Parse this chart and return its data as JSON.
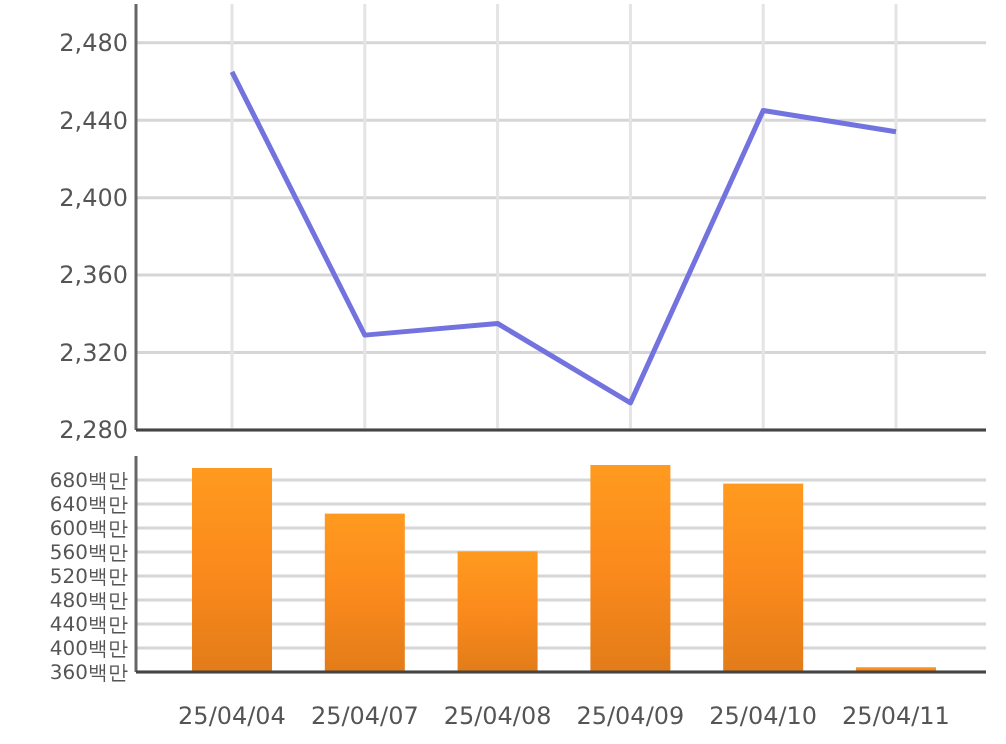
{
  "chart_data": [
    {
      "type": "line",
      "categories": [
        null,
        null,
        null,
        null,
        null,
        null
      ],
      "series": [
        {
          "color": "#7373e0",
          "values": [
            2465,
            2329,
            2335,
            2294,
            2445,
            2434
          ]
        }
      ],
      "ylim": [
        2280,
        2500
      ],
      "yticks": [
        {
          "value": 2280,
          "label": "2,280"
        },
        {
          "value": 2320,
          "label": "2,320"
        },
        {
          "value": 2360,
          "label": "2,360"
        },
        {
          "value": 2400,
          "label": "2,400"
        },
        {
          "value": 2440,
          "label": "2,440"
        },
        {
          "value": 2480,
          "label": "2,480"
        }
      ],
      "grid": true,
      "tick_labels": "y",
      "marker": "none"
    },
    {
      "type": "bar",
      "categories": [
        "25/04/04",
        "25/04/07",
        "25/04/08",
        "25/04/09",
        "25/04/10",
        "25/04/11"
      ],
      "series": [
        {
          "color": "#fb8a1c",
          "values": [
            700,
            624,
            561,
            705,
            674,
            368
          ]
        }
      ],
      "ylim": [
        360,
        720
      ],
      "yticks": [
        {
          "value": 360,
          "label": "360백만"
        },
        {
          "value": 400,
          "label": "400백만"
        },
        {
          "value": 440,
          "label": "440백만"
        },
        {
          "value": 480,
          "label": "480백만"
        },
        {
          "value": 520,
          "label": "520백만"
        },
        {
          "value": 560,
          "label": "560백만"
        },
        {
          "value": 600,
          "label": "600백만"
        },
        {
          "value": 640,
          "label": "640백만"
        },
        {
          "value": 680,
          "label": "680백만"
        }
      ],
      "grid": "y"
    }
  ]
}
